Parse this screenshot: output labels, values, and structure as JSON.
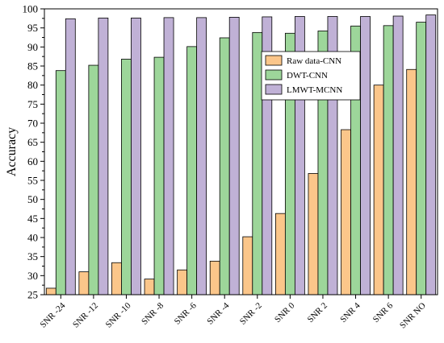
{
  "chart_data": {
    "type": "bar",
    "title": "",
    "xlabel": "",
    "ylabel": "Accuracy",
    "ylim": [
      25,
      100
    ],
    "yticks": [
      25,
      30,
      35,
      40,
      45,
      50,
      55,
      60,
      65,
      70,
      75,
      80,
      85,
      90,
      95,
      100
    ],
    "categories": [
      "SNR -24",
      "SNR -12",
      "SNR -10",
      "SNR -8",
      "SNR -6",
      "SNR -4",
      "SNR -2",
      "SNR 0",
      "SNR 2",
      "SNR 4",
      "SNR 6",
      "SNR NO"
    ],
    "series": [
      {
        "name": "Raw data-CNN",
        "color": "#fbc68a",
        "values": [
          26.7,
          31.0,
          33.4,
          29.1,
          31.5,
          33.8,
          40.2,
          46.3,
          56.8,
          68.3,
          80.0,
          84.1
        ]
      },
      {
        "name": "DWT-CNN",
        "color": "#9dd69a",
        "values": [
          83.8,
          85.2,
          86.8,
          87.3,
          90.1,
          92.4,
          93.8,
          93.6,
          94.2,
          95.5,
          95.6,
          96.5
        ]
      },
      {
        "name": "LMWT-MCNN",
        "color": "#c0b1d6",
        "values": [
          97.4,
          97.6,
          97.6,
          97.7,
          97.7,
          97.8,
          97.9,
          98.0,
          98.0,
          98.0,
          98.1,
          98.4
        ]
      }
    ],
    "grid": false,
    "legend_position": "upper-right inside plot"
  }
}
